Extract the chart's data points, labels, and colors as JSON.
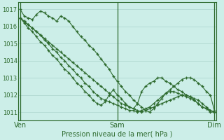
{
  "bg_color": "#cceee8",
  "grid_color": "#aad4cc",
  "line_color": "#2d6a2d",
  "ylim": [
    1010.5,
    1017.4
  ],
  "yticks": [
    1011,
    1012,
    1013,
    1014,
    1015,
    1016,
    1017
  ],
  "xtick_labels": [
    "Ven",
    "Sam",
    "Dim"
  ],
  "xtick_positions": [
    0,
    24,
    48
  ],
  "xlabel": "Pression niveau de la mer( hPa )",
  "n_points": 49,
  "series": [
    [
      1017.0,
      1016.6,
      1016.5,
      1016.4,
      1016.7,
      1016.9,
      1016.8,
      1016.6,
      1016.5,
      1016.3,
      1016.6,
      1016.5,
      1016.3,
      1016.0,
      1015.7,
      1015.4,
      1015.2,
      1014.9,
      1014.7,
      1014.4,
      1014.1,
      1013.8,
      1013.5,
      1013.1,
      1012.8,
      1012.5,
      1012.2,
      1012.0,
      1011.7,
      1011.5,
      1011.3,
      1011.1,
      1011.0,
      1011.2,
      1011.5,
      1011.8,
      1012.1,
      1012.3,
      1012.5,
      1012.7,
      1012.9,
      1013.0,
      1013.0,
      1012.9,
      1012.7,
      1012.5,
      1012.2,
      1012.0,
      1011.1
    ],
    [
      1016.5,
      1016.3,
      1016.1,
      1015.9,
      1015.7,
      1015.5,
      1015.3,
      1015.1,
      1014.9,
      1014.7,
      1014.5,
      1014.3,
      1014.1,
      1013.9,
      1013.7,
      1013.5,
      1013.3,
      1013.1,
      1012.9,
      1012.7,
      1012.5,
      1012.3,
      1012.1,
      1011.9,
      1011.7,
      1011.5,
      1011.4,
      1011.3,
      1011.2,
      1011.1,
      1011.0,
      1011.1,
      1011.2,
      1011.3,
      1011.4,
      1011.5,
      1011.6,
      1011.7,
      1011.8,
      1011.9,
      1012.0,
      1012.0,
      1011.9,
      1011.8,
      1011.7,
      1011.5,
      1011.3,
      1011.1,
      1011.0
    ],
    [
      1016.5,
      1016.3,
      1016.1,
      1015.9,
      1015.7,
      1015.5,
      1015.2,
      1015.0,
      1014.7,
      1014.5,
      1014.2,
      1014.0,
      1013.7,
      1013.5,
      1013.2,
      1013.0,
      1012.7,
      1012.5,
      1012.2,
      1012.0,
      1011.8,
      1011.7,
      1011.6,
      1011.5,
      1011.4,
      1011.3,
      1011.2,
      1011.1,
      1011.1,
      1011.0,
      1011.1,
      1011.2,
      1011.3,
      1011.5,
      1011.7,
      1011.9,
      1012.1,
      1012.2,
      1012.2,
      1012.1,
      1012.0,
      1011.9,
      1011.8,
      1011.7,
      1011.5,
      1011.3,
      1011.2,
      1011.0,
      1011.0
    ],
    [
      1016.5,
      1016.2,
      1015.9,
      1015.7,
      1015.4,
      1015.1,
      1014.9,
      1014.6,
      1014.3,
      1014.1,
      1013.8,
      1013.5,
      1013.3,
      1013.0,
      1012.7,
      1012.5,
      1012.2,
      1012.0,
      1011.7,
      1011.5,
      1011.4,
      1011.6,
      1012.0,
      1012.3,
      1012.0,
      1011.8,
      1011.5,
      1011.3,
      1011.2,
      1011.5,
      1012.2,
      1012.5,
      1012.7,
      1012.8,
      1013.0,
      1013.0,
      1012.8,
      1012.7,
      1012.5,
      1012.3,
      1012.2,
      1012.0,
      1011.9,
      1011.7,
      1011.5,
      1011.3,
      1011.2,
      1011.1,
      1011.0
    ]
  ]
}
